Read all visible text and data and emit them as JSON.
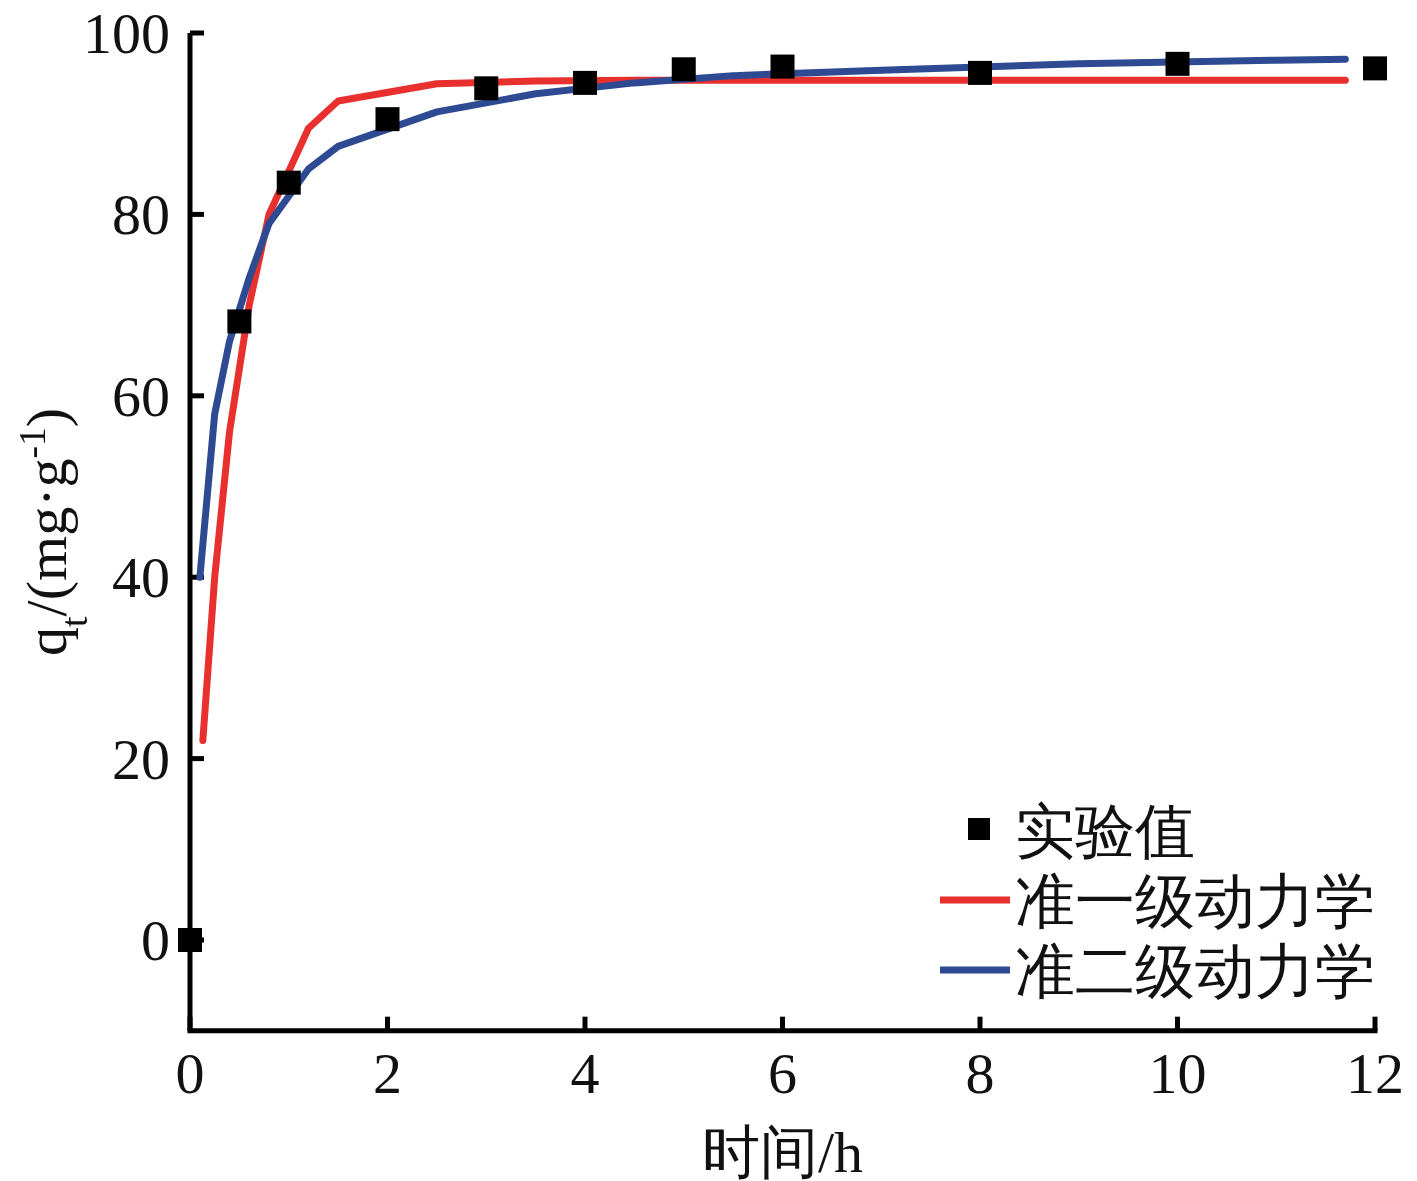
{
  "chart_data": {
    "type": "scatter",
    "xlabel": "时间/h",
    "ylabel": "q$_{t}$/(mg·g$^{-1}$)",
    "xlim": [
      0,
      12
    ],
    "ylim": [
      -10,
      100
    ],
    "xticks": [
      0,
      2,
      4,
      6,
      8,
      10,
      12
    ],
    "yticks": [
      0,
      20,
      40,
      60,
      80,
      100
    ],
    "legend": "bottom right",
    "grid": false,
    "series": [
      {
        "name": "实验值",
        "type": "scatter",
        "marker": "square",
        "color": "#000000",
        "x": [
          0,
          0.5,
          1,
          2,
          3,
          4,
          5,
          6,
          8,
          10,
          12
        ],
        "values": [
          0,
          68.2,
          83.5,
          90.5,
          93.9,
          94.5,
          96.0,
          96.3,
          95.6,
          96.6,
          96.1
        ]
      },
      {
        "name": "准一级动力学",
        "type": "line",
        "color": "#e8312f",
        "x": [
          0.13,
          0.25,
          0.4,
          0.6,
          0.8,
          1.2,
          1.5,
          2.5,
          3.5,
          4.5,
          7,
          9,
          11,
          11.7
        ],
        "values": [
          22,
          40,
          56,
          70,
          80,
          89.5,
          92.5,
          94.4,
          94.7,
          94.8,
          94.8,
          94.8,
          94.8,
          94.8
        ]
      },
      {
        "name": "准二级动力学",
        "type": "line",
        "color": "#2e4a93",
        "x": [
          0.1,
          0.25,
          0.4,
          0.6,
          0.8,
          1.2,
          1.5,
          2.5,
          3.5,
          4.5,
          5.5,
          7,
          9,
          11,
          11.7
        ],
        "values": [
          40,
          58,
          66,
          73,
          79,
          85,
          87.5,
          91.3,
          93.3,
          94.5,
          95.3,
          95.9,
          96.6,
          97,
          97.1
        ]
      }
    ]
  }
}
